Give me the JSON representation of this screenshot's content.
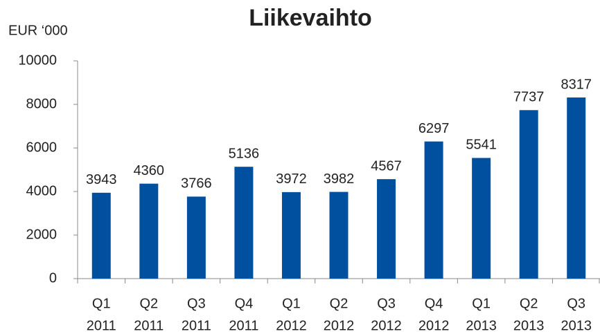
{
  "chart_data": {
    "type": "bar",
    "title": "Liikevaihto",
    "y_label": "EUR ‘000",
    "categories": [
      [
        "Q1",
        "2011"
      ],
      [
        "Q2",
        "2011"
      ],
      [
        "Q3",
        "2011"
      ],
      [
        "Q4",
        "2011"
      ],
      [
        "Q1",
        "2012"
      ],
      [
        "Q2",
        "2012"
      ],
      [
        "Q3",
        "2012"
      ],
      [
        "Q4",
        "2012"
      ],
      [
        "Q1",
        "2013"
      ],
      [
        "Q2",
        "2013"
      ],
      [
        "Q3",
        "2013"
      ]
    ],
    "values": [
      3943,
      4360,
      3766,
      5136,
      3972,
      3982,
      4567,
      6297,
      5541,
      7737,
      8317
    ],
    "color": "#0050a0",
    "ylim": [
      0,
      10000
    ],
    "yticks": [
      0,
      2000,
      4000,
      6000,
      8000,
      10000
    ],
    "grid": false
  }
}
